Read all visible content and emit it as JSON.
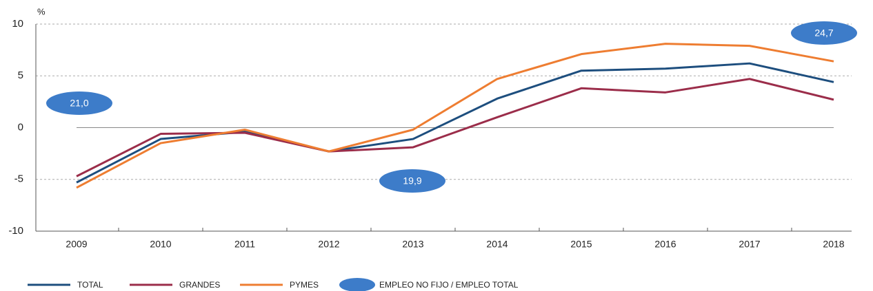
{
  "chart_data": {
    "type": "line",
    "y_unit": "%",
    "categories": [
      "2009",
      "2010",
      "2011",
      "2012",
      "2013",
      "2014",
      "2015",
      "2016",
      "2017",
      "2018"
    ],
    "series": [
      {
        "name": "TOTAL",
        "color": "#1d4e7e",
        "values": [
          -5.3,
          -1.1,
          -0.4,
          -2.3,
          -1.1,
          2.8,
          5.5,
          5.7,
          6.2,
          4.4
        ]
      },
      {
        "name": "GRANDES",
        "color": "#9b2d4a",
        "values": [
          -4.7,
          -0.6,
          -0.5,
          -2.3,
          -1.9,
          1.0,
          3.8,
          3.4,
          4.7,
          2.7
        ]
      },
      {
        "name": "PYMES",
        "color": "#ee7d31",
        "values": [
          -5.8,
          -1.5,
          -0.2,
          -2.3,
          -0.2,
          4.7,
          7.1,
          8.1,
          7.9,
          6.4
        ]
      }
    ],
    "annotation_series": {
      "name": "EMPLEO NO FIJO / EMPLEO TOTAL",
      "color": "#3d7cc9",
      "values": [
        21.0,
        null,
        null,
        null,
        19.9,
        null,
        null,
        null,
        null,
        24.7
      ],
      "value_labels": [
        "21,0",
        null,
        null,
        null,
        "19,9",
        null,
        null,
        null,
        null,
        "24,7"
      ]
    },
    "ylim": [
      -10,
      10
    ],
    "yticks": [
      10,
      5,
      0,
      -5,
      -10
    ],
    "grid": true
  }
}
